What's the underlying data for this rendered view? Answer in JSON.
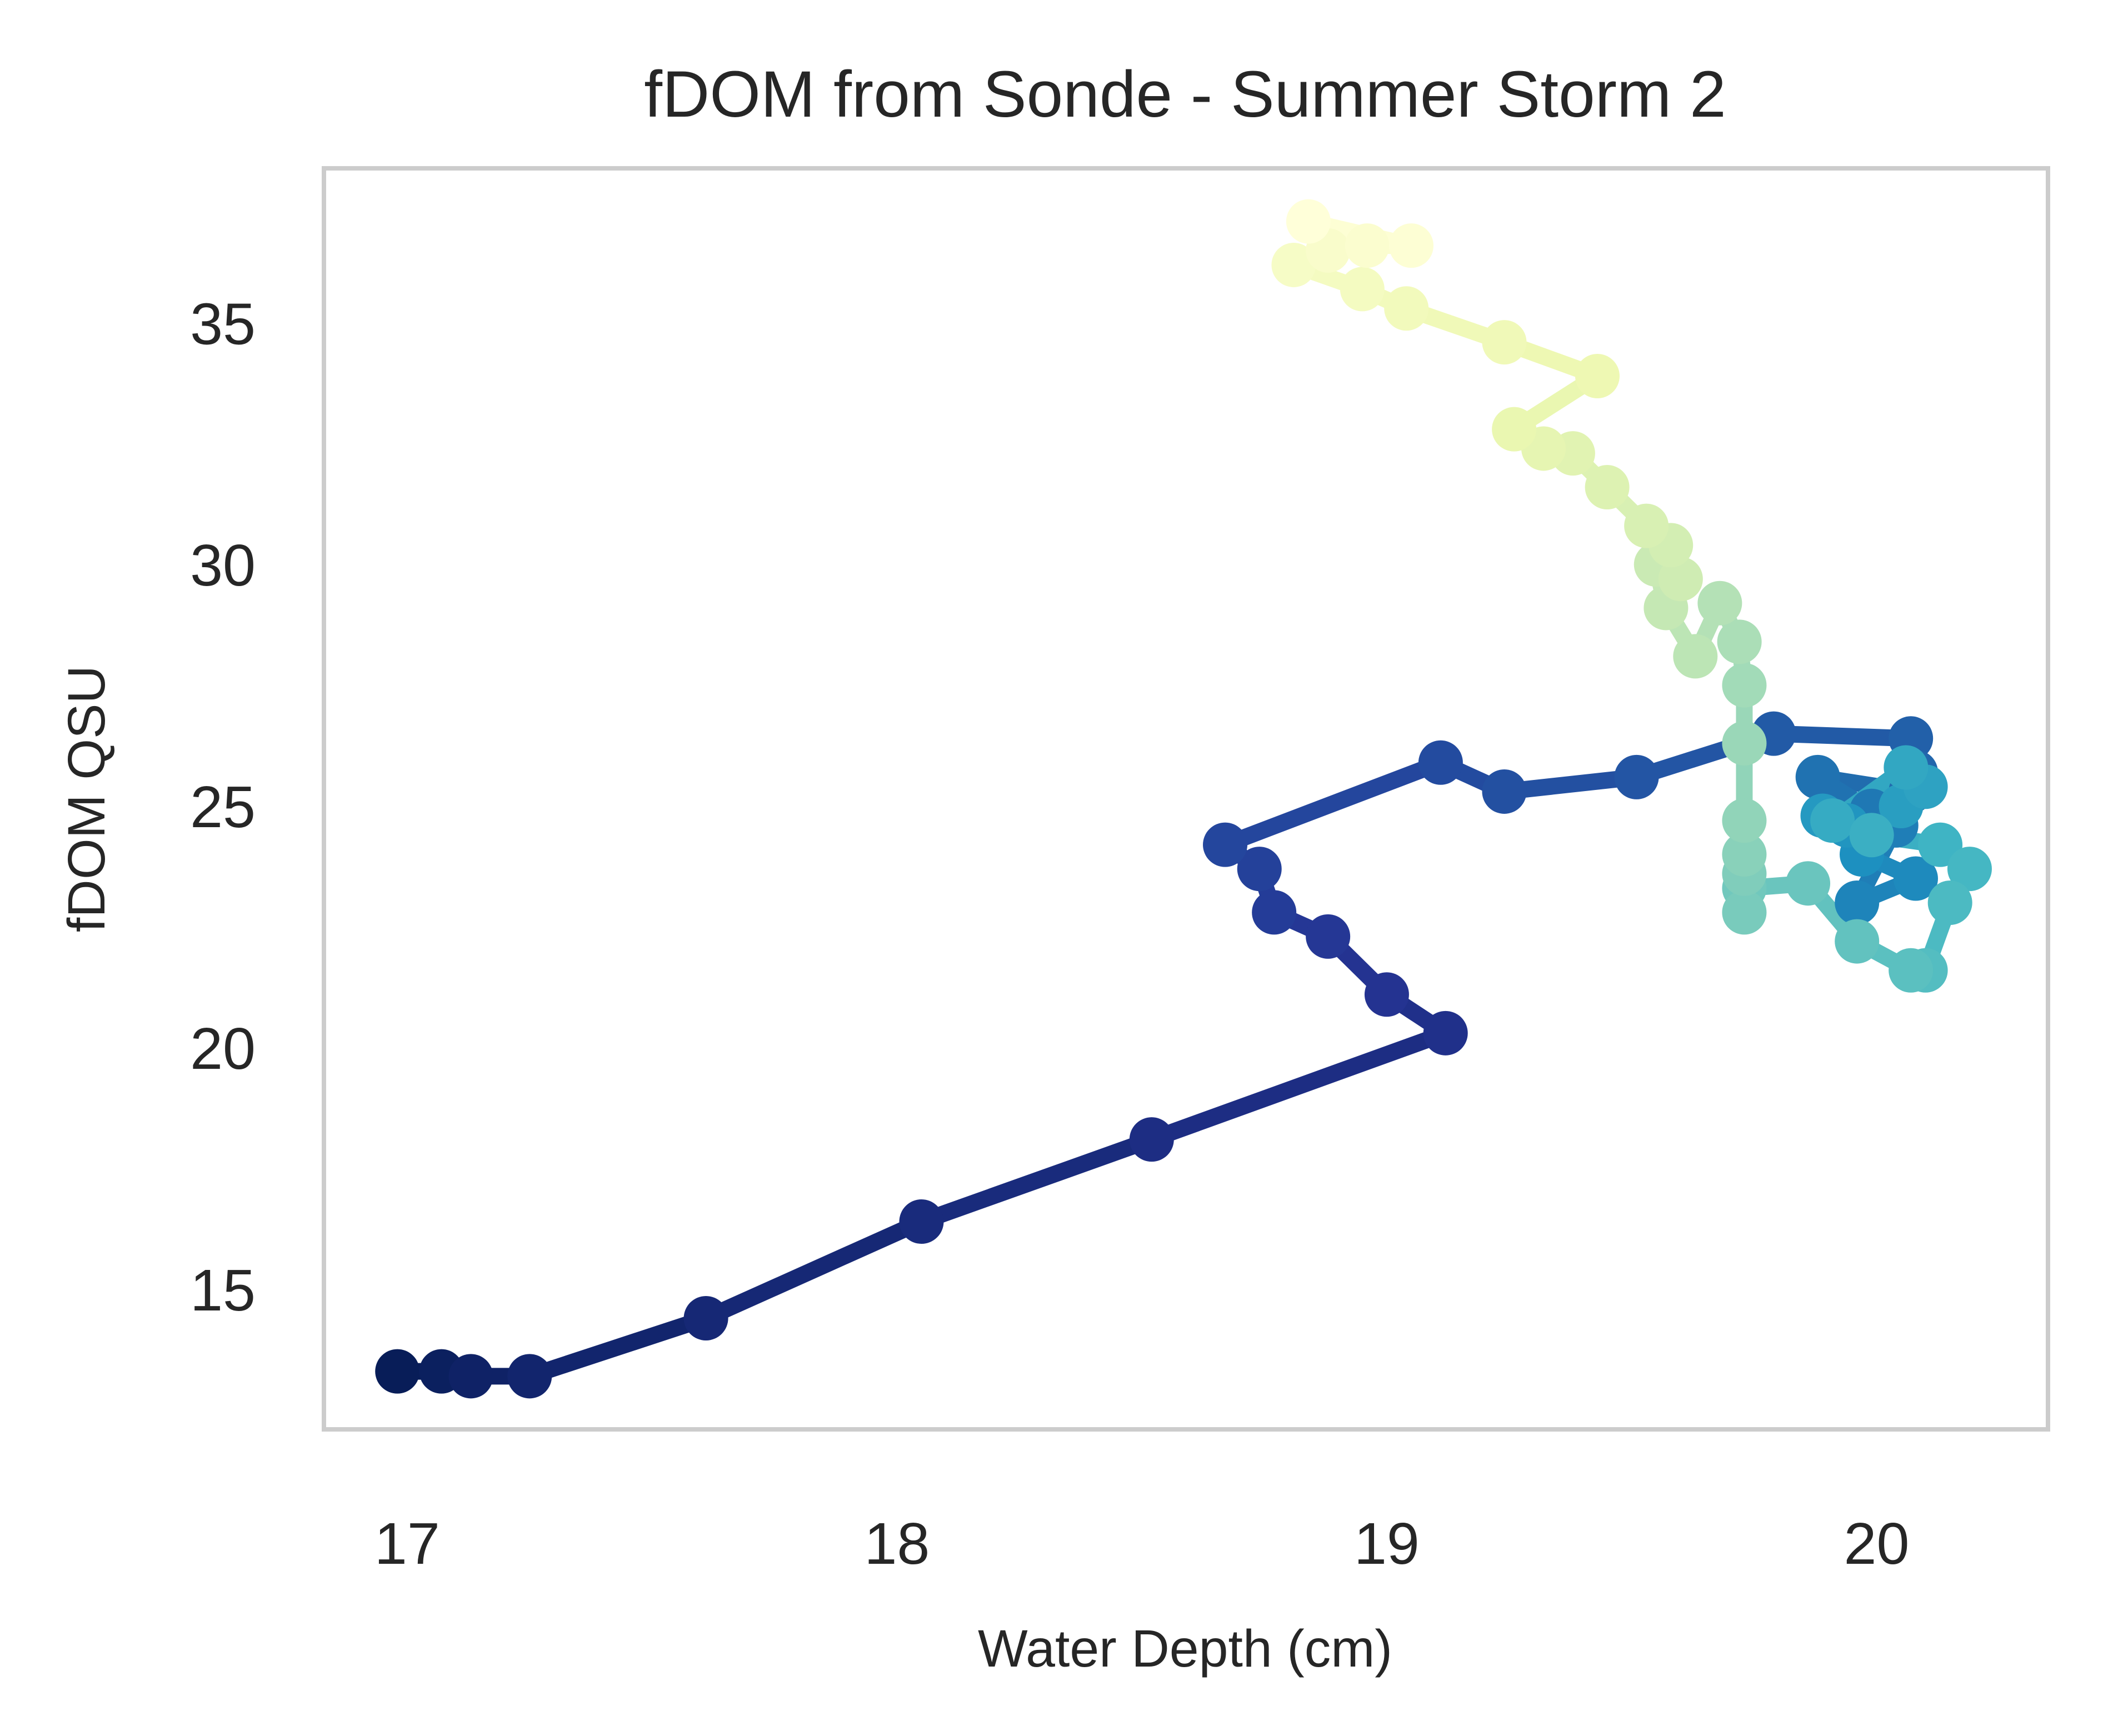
{
  "chart_data": {
    "type": "line",
    "title": "fDOM from Sonde - Summer Storm 2",
    "xlabel": "Water Depth (cm)",
    "ylabel": "fDOM QSU",
    "xlim": [
      16.83,
      20.35
    ],
    "ylim": [
      12.1,
      38.2
    ],
    "xticks": [
      17,
      18,
      19,
      20
    ],
    "yticks": [
      15,
      20,
      25,
      30,
      35
    ],
    "grid": false,
    "colormap": "YlGnBu (reversed, dark at start, light at end)",
    "series": [
      {
        "x": [
          16.98,
          17.07,
          17.13,
          17.25,
          17.61,
          18.05,
          18.52,
          19.12,
          19.0,
          18.88,
          18.77,
          18.74,
          18.67,
          19.11,
          19.24,
          19.51,
          19.79,
          20.07,
          20.08,
          20.07,
          19.88,
          19.99,
          20.04,
          19.96,
          20.08,
          19.97,
          19.94,
          19.89,
          20.05,
          20.1,
          20.06,
          19.91,
          19.99,
          20.13,
          20.19,
          20.15,
          20.1,
          20.07,
          19.96,
          19.86,
          19.73,
          19.73,
          19.73,
          19.73,
          19.73,
          19.73,
          19.73,
          19.72,
          19.68,
          19.63,
          19.57,
          19.55,
          19.6,
          19.58,
          19.53,
          19.45,
          19.38,
          19.32,
          19.26,
          19.43,
          19.24,
          19.04,
          18.95,
          18.81,
          18.88,
          18.96,
          19.05,
          18.84
        ],
        "y": [
          13.3,
          13.3,
          13.2,
          13.2,
          14.4,
          16.4,
          18.1,
          20.3,
          21.1,
          22.3,
          22.8,
          23.7,
          24.2,
          25.9,
          25.3,
          25.6,
          26.5,
          26.4,
          25.7,
          25.3,
          25.6,
          24.9,
          24.6,
          23.0,
          23.5,
          24.0,
          24.6,
          24.8,
          25.0,
          25.4,
          25.8,
          24.7,
          24.4,
          24.2,
          23.7,
          23.0,
          21.6,
          21.6,
          22.2,
          23.4,
          23.3,
          22.8,
          23.6,
          24.0,
          24.7,
          26.3,
          27.5,
          28.4,
          29.2,
          28.1,
          29.1,
          30.0,
          29.7,
          30.4,
          30.8,
          31.6,
          32.3,
          32.4,
          32.8,
          33.9,
          34.6,
          35.3,
          35.7,
          36.2,
          36.5,
          36.6,
          36.6,
          37.1
        ]
      }
    ]
  }
}
